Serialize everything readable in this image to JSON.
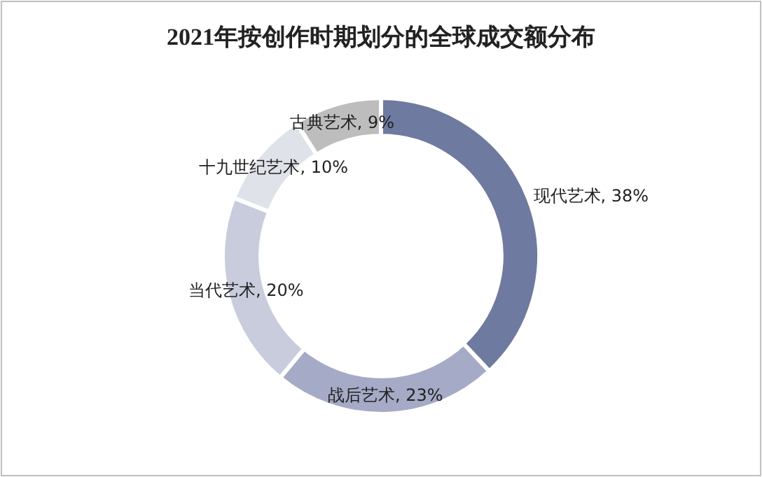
{
  "chart_data": {
    "type": "donut",
    "title": "2021年按创作时期划分的全球成交额分布",
    "categories": [
      "现代艺术",
      "战后艺术",
      "当代艺术",
      "十九世纪艺术",
      "古典艺术"
    ],
    "values": [
      38,
      23,
      20,
      10,
      9
    ],
    "value_labels": [
      "38%",
      "23%",
      "20%",
      "10%",
      "9%"
    ],
    "colors": [
      "#6f7aa0",
      "#a5abc6",
      "#c8ccdc",
      "#e0e2ea",
      "#bdbdbd"
    ]
  }
}
